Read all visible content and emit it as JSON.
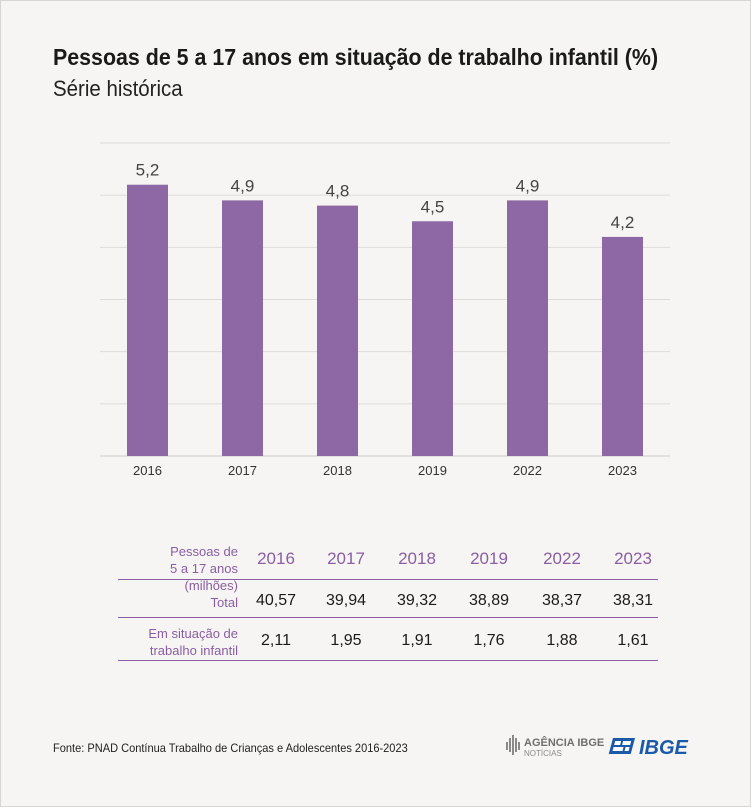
{
  "title": "Pessoas de 5 a 17 anos em situação de trabalho infantil (%)",
  "subtitle": "Série histórica",
  "chart_data": {
    "type": "bar",
    "categories": [
      "2016",
      "2017",
      "2018",
      "2019",
      "2022",
      "2023"
    ],
    "values": [
      5.2,
      4.9,
      4.8,
      4.5,
      4.9,
      4.2
    ],
    "value_labels": [
      "5,2",
      "4,9",
      "4,8",
      "4,5",
      "4,9",
      "4,2"
    ],
    "ylim": [
      0,
      6
    ],
    "grid": true,
    "bar_color": "#8e68a4"
  },
  "table": {
    "header_label": [
      "Pessoas de",
      "5 a 17 anos (milhões)"
    ],
    "years": [
      "2016",
      "2017",
      "2018",
      "2019",
      "2022",
      "2023"
    ],
    "rows": [
      {
        "label": [
          "Total"
        ],
        "values": [
          "40,57",
          "39,94",
          "39,32",
          "38,89",
          "38,37",
          "38,31"
        ]
      },
      {
        "label": [
          "Em situação de",
          "trabalho infantil"
        ],
        "values": [
          "2,11",
          "1,95",
          "1,91",
          "1,76",
          "1,88",
          "1,61"
        ]
      }
    ]
  },
  "source": "Fonte: PNAD Contínua Trabalho de Crianças e Adolescentes 2016-2023",
  "logos": {
    "agencia_line1": "AGÊNCIA IBGE",
    "agencia_line2": "NOTÍCIAS",
    "ibge": "IBGE"
  },
  "colors": {
    "accent": "#8a5ea3",
    "bar": "#8e68a4",
    "grid": "#dedbd8",
    "ibge_blue": "#1b5aa8"
  }
}
